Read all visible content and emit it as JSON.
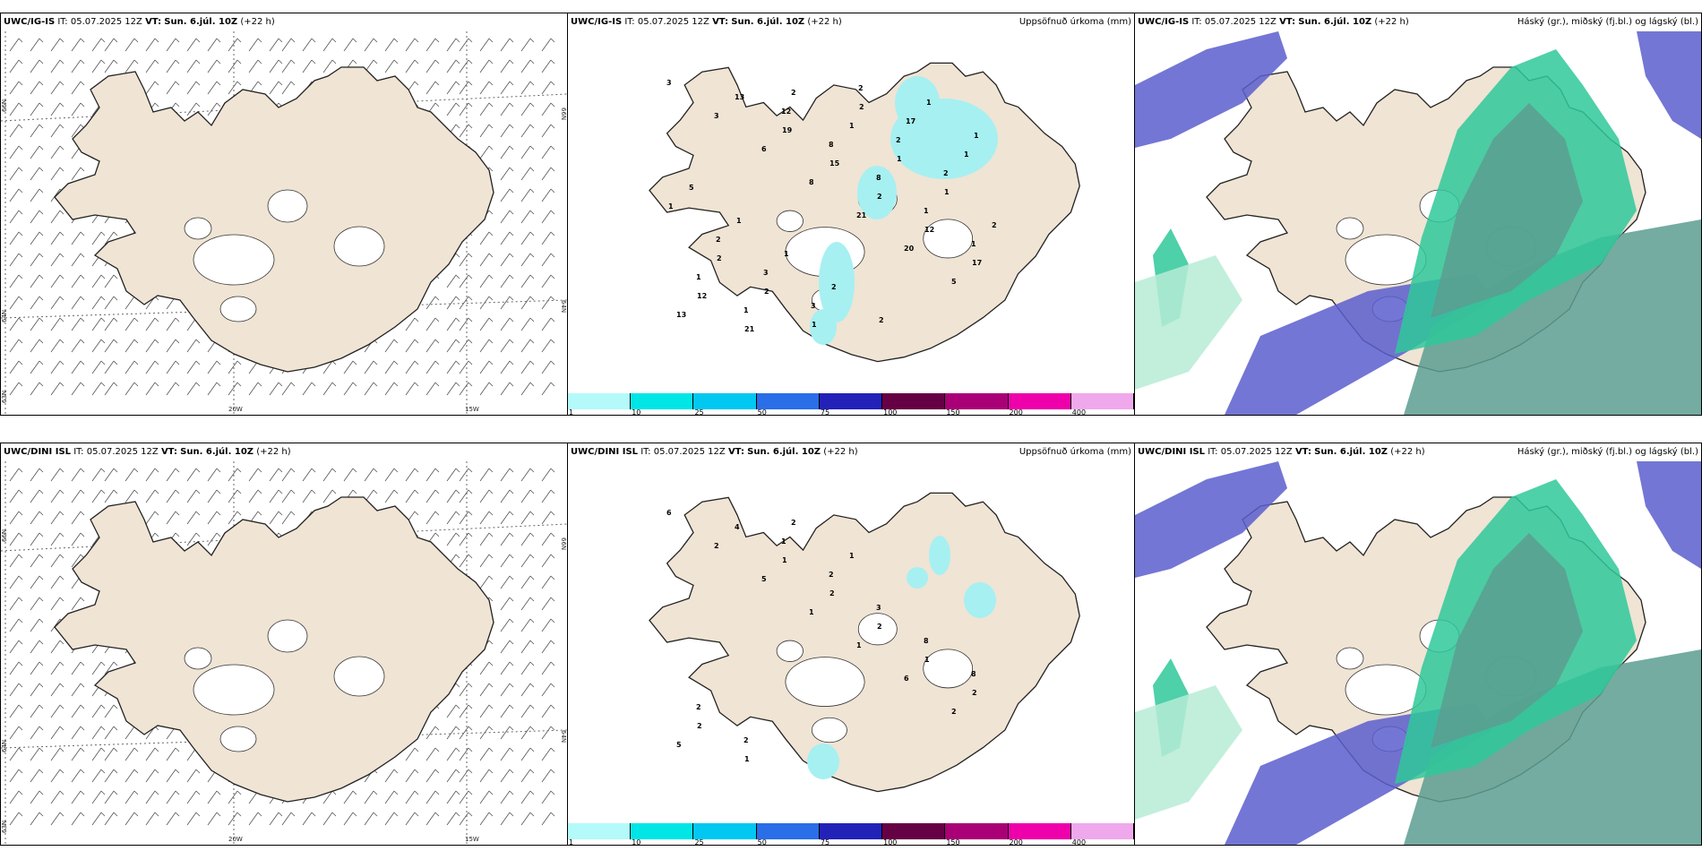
{
  "rows": [
    {
      "panels": [
        {
          "model": "UWC/IG-IS",
          "it_label": "IT:",
          "it_value": "05.07.2025 12Z",
          "vt_label": "VT:",
          "vt_value": "Sun. 6.júl. 10Z",
          "lead": "(+22 h)",
          "right_title": ""
        },
        {
          "model": "UWC/IG-IS",
          "it_label": "IT:",
          "it_value": "05.07.2025 12Z",
          "vt_label": "VT:",
          "vt_value": "Sun. 6.júl. 10Z",
          "lead": "(+22 h)",
          "right_title": "Uppsöfnuð úrkoma (mm)"
        },
        {
          "model": "UWC/IG-IS",
          "it_label": "IT:",
          "it_value": "05.07.2025 12Z",
          "vt_label": "VT:",
          "vt_value": "Sun. 6.júl. 10Z",
          "lead": "(+22 h)",
          "right_title": "Háský (gr.), miðský (fj.bl.) og lágský (bl.)"
        }
      ],
      "precip_labels": [
        "3",
        "3",
        "6",
        "8",
        "21",
        "20",
        "5",
        "13",
        "13",
        "19",
        "15",
        "2",
        "12",
        "17",
        "12",
        "21",
        "12",
        "8",
        "8",
        "1",
        "1",
        "1",
        "1",
        "2",
        "1",
        "1",
        "1",
        "2",
        "2",
        "2",
        "1",
        "2",
        "2",
        "2",
        "1",
        "2",
        "3",
        "3",
        "2",
        "17",
        "1",
        "5",
        "1",
        "1",
        "2",
        "2",
        "1",
        "1"
      ]
    },
    {
      "panels": [
        {
          "model": "UWC/DINI ISL",
          "it_label": "IT:",
          "it_value": "05.07.2025 12Z",
          "vt_label": "VT:",
          "vt_value": "Sun. 6.júl. 10Z",
          "lead": "(+22 h)",
          "right_title": ""
        },
        {
          "model": "UWC/DINI ISL",
          "it_label": "IT:",
          "it_value": "05.07.2025 12Z",
          "vt_label": "VT:",
          "vt_value": "Sun. 6.júl. 10Z",
          "lead": "(+22 h)",
          "right_title": "Uppsöfnuð úrkoma (mm)"
        },
        {
          "model": "UWC/DINI ISL",
          "it_label": "IT:",
          "it_value": "05.07.2025 12Z",
          "vt_label": "VT:",
          "vt_value": "Sun. 6.júl. 10Z",
          "lead": "(+22 h)",
          "right_title": "Háský (gr.), miðský (fj.bl.) og lágský (bl.)"
        }
      ],
      "precip_labels": [
        "6",
        "2",
        "5",
        "1",
        "1",
        "6",
        "2",
        "5",
        "4",
        "1",
        "2",
        "2",
        "1",
        "2",
        "2",
        "1",
        "1",
        "2",
        "3",
        "8",
        "8",
        "2",
        "2",
        "2",
        "1"
      ]
    }
  ],
  "graticule": {
    "lat_66": "66N",
    "lat_64": "64N",
    "lat_63": "63N",
    "lon_20w": "20W",
    "lon_15w": "15W"
  },
  "colorbar": {
    "ticks": [
      "1",
      "10",
      "25",
      "50",
      "75",
      "100",
      "150",
      "200",
      "400"
    ],
    "colors": [
      "#b4fafa",
      "#00e6e6",
      "#00c8f0",
      "#2a6ee8",
      "#2222b8",
      "#660044",
      "#aa0077",
      "#ee00aa",
      "#f0a8ec"
    ]
  },
  "colors": {
    "land": "#f0e4d4",
    "ice": "#ffffff",
    "sea": "#ffffff",
    "precip": "#a6f0f2",
    "high_cloud": "#5c9e90",
    "mid_cloud": "#2fc89a",
    "low_cloud": "#5a5ecc"
  }
}
